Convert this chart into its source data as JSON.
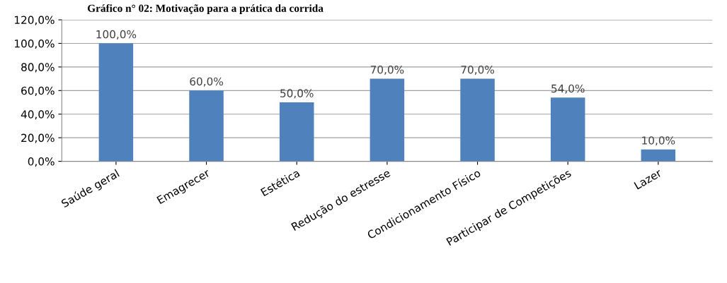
{
  "chart_data": {
    "type": "bar",
    "title": "Gráfico n° 02: Motivação para a prática da corrida",
    "categories": [
      "Saúde geral",
      "Emagrecer",
      "Estética",
      "Redução do estresse",
      "Condicionamento Físico",
      "Participar de Competições",
      "Lazer"
    ],
    "values": [
      100,
      60,
      50,
      70,
      70,
      54,
      10
    ],
    "value_labels": [
      "100,0%",
      "60,0%",
      "50,0%",
      "70,0%",
      "70,0%",
      "54,0%",
      "10,0%"
    ],
    "color": "#4f81bd",
    "ylim": [
      0,
      120
    ],
    "yticks": [
      {
        "value": 0,
        "label": "0,0%"
      },
      {
        "value": 20,
        "label": "20,0%"
      },
      {
        "value": 40,
        "label": "40,0%"
      },
      {
        "value": 60,
        "label": "60,0%"
      },
      {
        "value": 80,
        "label": "80,0%"
      },
      {
        "value": 100,
        "label": "100,0%"
      },
      {
        "value": 120,
        "label": "120,0%"
      }
    ],
    "grid": "y",
    "legend": false
  }
}
